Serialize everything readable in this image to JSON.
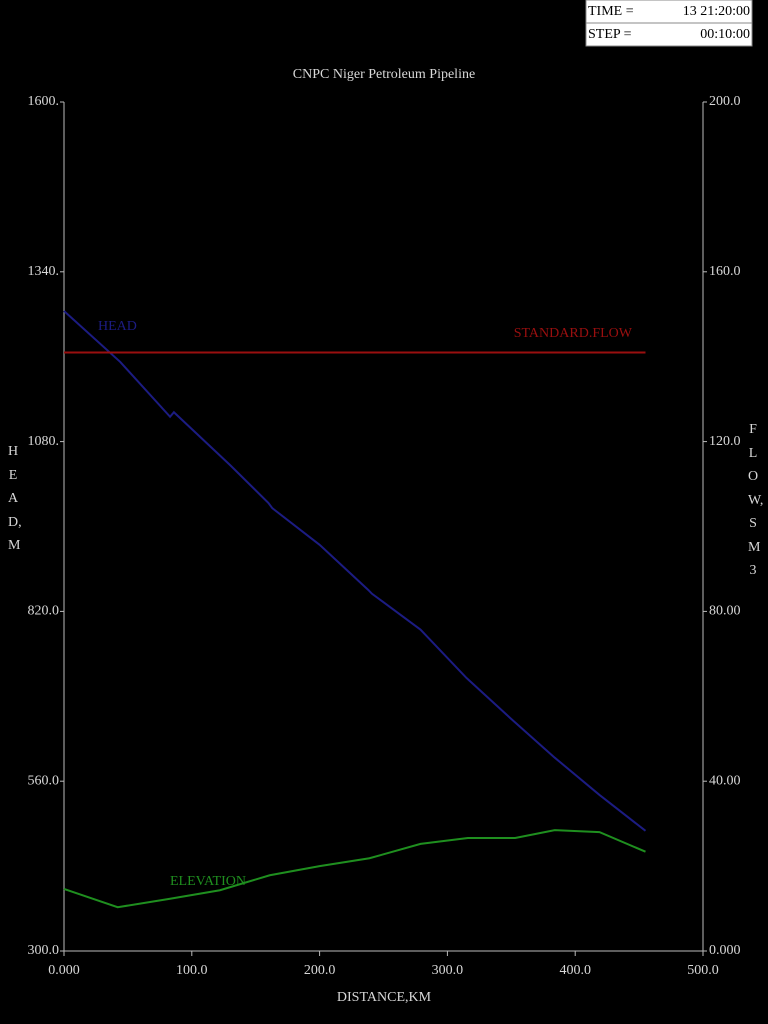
{
  "header": {
    "time_label": "TIME =",
    "time": "13 21:20:00",
    "step_label": "STEP =",
    "step": "00:10:00"
  },
  "chart_data": {
    "type": "line",
    "title": "CNPC Niger Petroleum Pipeline",
    "x_label": "DISTANCE,KM",
    "y_label": "HEAD,M",
    "y2_label": "FLOW,SM3",
    "xlim": [
      0,
      500
    ],
    "xticks": [
      {
        "value": 0,
        "label": "0.000"
      },
      {
        "value": 100,
        "label": "100.0"
      },
      {
        "value": 200,
        "label": "200.0"
      },
      {
        "value": 300,
        "label": "300.0"
      },
      {
        "value": 400,
        "label": "400.0"
      },
      {
        "value": 500,
        "label": "500.0"
      }
    ],
    "ylim": [
      300,
      1600
    ],
    "yticks": [
      {
        "value": 300,
        "label": "300.0"
      },
      {
        "value": 560,
        "label": "560.0"
      },
      {
        "value": 820,
        "label": "820.0"
      },
      {
        "value": 1080,
        "label": "1080."
      },
      {
        "value": 1340,
        "label": "1340."
      },
      {
        "value": 1600,
        "label": "1600."
      }
    ],
    "y2lim": [
      0,
      200
    ],
    "y2ticks": [
      {
        "value": 0,
        "label": "0.000"
      },
      {
        "value": 40,
        "label": "40.00"
      },
      {
        "value": 80,
        "label": "80.00"
      },
      {
        "value": 120,
        "label": "120.0"
      },
      {
        "value": 160,
        "label": "160.0"
      },
      {
        "value": 200,
        "label": "200.0"
      }
    ],
    "series": [
      {
        "name": "HEAD",
        "color": "#1c1c82",
        "x": [
          0,
          44,
          83,
          86,
          130,
          160,
          163,
          200,
          238,
          241,
          279,
          315,
          349,
          384,
          419,
          455
        ],
        "values": [
          1280,
          1202,
          1118,
          1125,
          1044,
          986,
          978,
          922,
          853,
          847,
          792,
          718,
          657,
          596,
          539,
          484
        ]
      },
      {
        "name": "ELEVATION",
        "color": "#1f8f1f",
        "x": [
          0,
          42,
          83,
          122,
          161,
          200,
          239,
          279,
          316,
          353,
          384,
          419,
          455
        ],
        "values": [
          395,
          367,
          380,
          393,
          416,
          430,
          442,
          464,
          473,
          473,
          485,
          482,
          452
        ]
      },
      {
        "name": "STANDARD.FLOW",
        "color": "#9a0f0f",
        "axis": "y2",
        "x": [
          0,
          100,
          200,
          300,
          400,
          455
        ],
        "values": [
          141,
          141,
          141,
          141,
          141,
          141
        ]
      }
    ]
  }
}
